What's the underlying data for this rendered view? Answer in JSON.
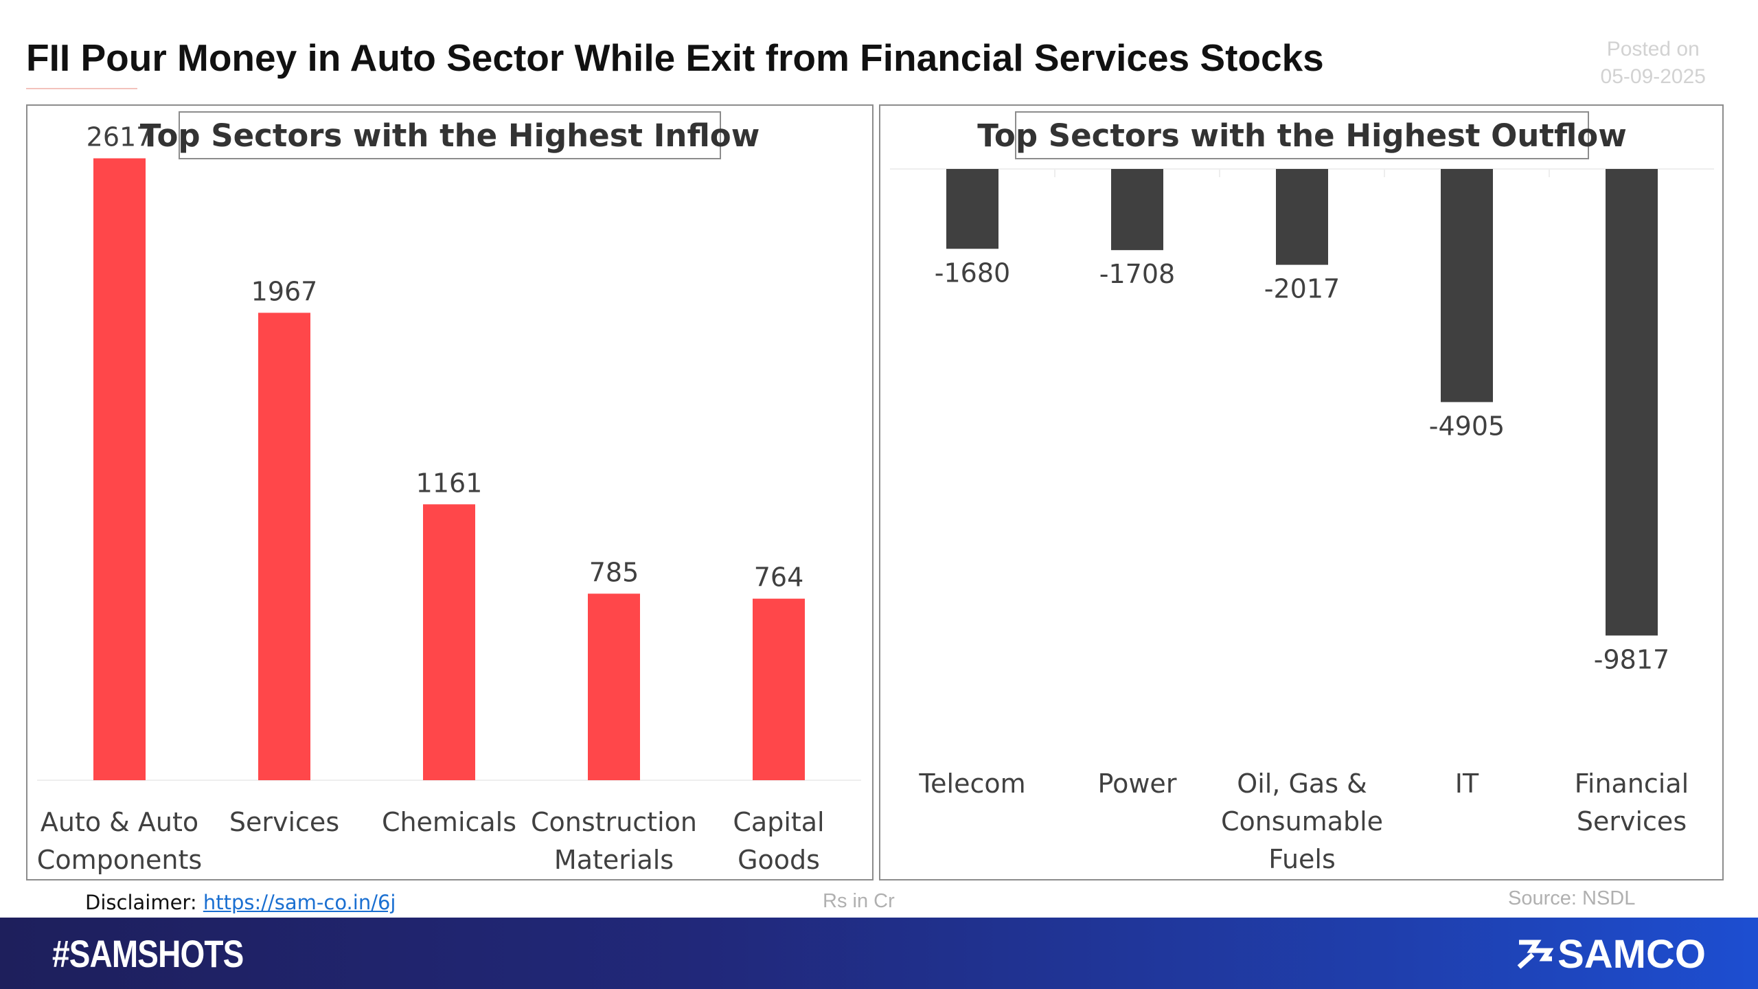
{
  "header": {
    "title": "FII Pour Money in Auto Sector While Exit from Financial Services Stocks",
    "posted_label": "Posted on",
    "posted_date": "05-09-2025"
  },
  "chart_data": [
    {
      "type": "bar",
      "title": "Top Sectors with the Highest Inflow",
      "categories": [
        [
          "Auto & Auto",
          "Components"
        ],
        [
          "Services"
        ],
        [
          "Chemicals"
        ],
        [
          "Construction",
          "Materials"
        ],
        [
          "Capital",
          "Goods"
        ]
      ],
      "values": [
        2617,
        1967,
        1161,
        785,
        764
      ],
      "value_labels": [
        "2617",
        "1967",
        "1161",
        "785",
        "764"
      ],
      "color": "#ff474a",
      "ylim": [
        0,
        3000
      ],
      "grid": false
    },
    {
      "type": "bar",
      "title": "Top Sectors with the Highest Outflow",
      "categories": [
        [
          "Telecom"
        ],
        [
          "Power"
        ],
        [
          "Oil, Gas &",
          "Consumable",
          "Fuels"
        ],
        [
          "IT"
        ],
        [
          "Financial",
          "Services"
        ]
      ],
      "values": [
        -1680,
        -1708,
        -2017,
        -4905,
        -9817
      ],
      "value_labels": [
        "-1680",
        "-1708",
        "-2017",
        "-4905",
        "-9817"
      ],
      "color": "#404040",
      "ylim": [
        -10000,
        0
      ],
      "grid": false
    }
  ],
  "footer": {
    "disclaimer_label": "Disclaimer:",
    "disclaimer_link": "https://sam-co.in/6j",
    "units": "Rs in Cr",
    "source": "Source: NSDL",
    "hashtag": "#SAMSHOTS",
    "brand": "SAMCO"
  }
}
